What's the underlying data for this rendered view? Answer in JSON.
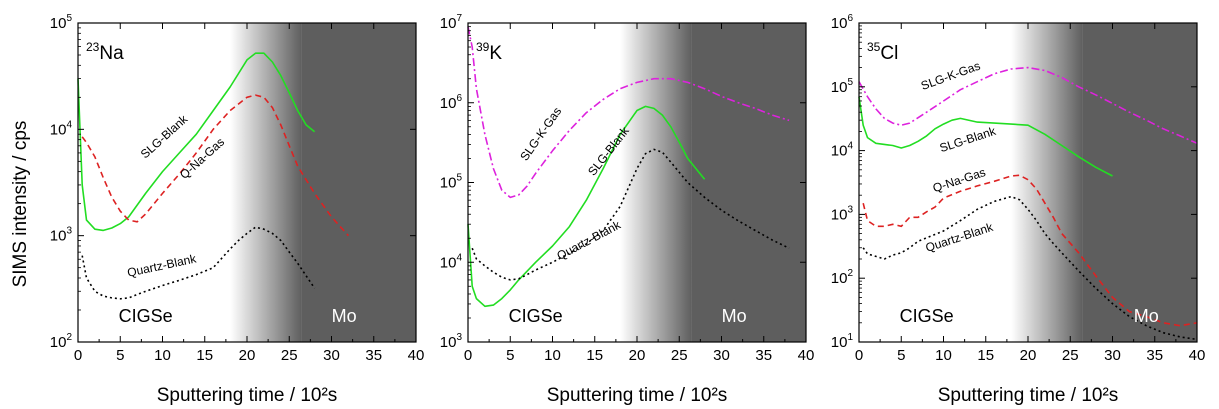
{
  "y_axis_label": "SIMS intensity / cps",
  "chart_data": [
    {
      "type": "line",
      "element": {
        "mass": "23",
        "symbol": "Na"
      },
      "xlabel": "Sputtering time / 10²s",
      "xlim": [
        0,
        40
      ],
      "x_ticks": [
        "0",
        "5",
        "10",
        "15",
        "20",
        "25",
        "30",
        "35",
        "40"
      ],
      "y_scale": "log",
      "ylim": [
        100,
        100000
      ],
      "y_ticks": [
        {
          "base": "10",
          "exp": "2"
        },
        {
          "base": "10",
          "exp": "3"
        },
        {
          "base": "10",
          "exp": "4"
        },
        {
          "base": "10",
          "exp": "5"
        }
      ],
      "regions": [
        {
          "label": "CIGSe",
          "x": 8,
          "color": "#000000"
        },
        {
          "label": "Mo",
          "x": 31.5,
          "color": "#ffffff"
        }
      ],
      "shade": {
        "gradient_start": 18,
        "gradient_end": 26.5,
        "dark_color": "#5e5e5e"
      },
      "series": [
        {
          "name": "SLG-Blank",
          "color": "#22dd22",
          "dash": "solid",
          "x": [
            0,
            0.5,
            1,
            2,
            3,
            4,
            5,
            6,
            8,
            10,
            12,
            14,
            16,
            18,
            20,
            21,
            22,
            23,
            24,
            25,
            26,
            27,
            28
          ],
          "y": [
            30000,
            3000,
            1400,
            1150,
            1120,
            1180,
            1300,
            1500,
            2500,
            4000,
            6000,
            9000,
            15000,
            25000,
            45000,
            52000,
            52000,
            43000,
            32000,
            22000,
            15000,
            11000,
            9500
          ],
          "label": {
            "text": "SLG-Blank",
            "x": 10.5,
            "y": 8000,
            "angle": -42
          }
        },
        {
          "name": "Q-Na-Gas",
          "color": "#dd2222",
          "dash": "6,4",
          "x": [
            0.5,
            1,
            2,
            3,
            4,
            5,
            6,
            7,
            8,
            10,
            12,
            14,
            16,
            18,
            20,
            21,
            22,
            23,
            24,
            25,
            26,
            28,
            30,
            32
          ],
          "y": [
            8500,
            7500,
            5500,
            3500,
            2300,
            1700,
            1400,
            1350,
            1600,
            2500,
            3800,
            6000,
            10000,
            15000,
            20000,
            21000,
            20000,
            16000,
            11000,
            7000,
            4500,
            2500,
            1500,
            1000
          ],
          "label": {
            "text": "Q-Na-Gas",
            "x": 15,
            "y": 5000,
            "angle": -42
          }
        },
        {
          "name": "Quartz-Blank",
          "color": "#000000",
          "dash": "2,3",
          "x": [
            0.5,
            1,
            2,
            3,
            4,
            5,
            6,
            7,
            8,
            10,
            12,
            14,
            16,
            18,
            19,
            20,
            21,
            22,
            23,
            24,
            25,
            26,
            27,
            28
          ],
          "y": [
            650,
            400,
            300,
            270,
            260,
            255,
            260,
            280,
            300,
            340,
            380,
            430,
            500,
            750,
            900,
            1050,
            1200,
            1150,
            1050,
            900,
            700,
            550,
            420,
            320
          ],
          "label": {
            "text": "Quartz-Blank",
            "x": 10,
            "y": 480,
            "angle": -12
          }
        }
      ]
    },
    {
      "type": "line",
      "element": {
        "mass": "39",
        "symbol": "K"
      },
      "xlabel": "Sputtering time / 10²s",
      "xlim": [
        0,
        40
      ],
      "x_ticks": [
        "0",
        "5",
        "10",
        "15",
        "20",
        "25",
        "30",
        "35",
        "40"
      ],
      "y_scale": "log",
      "ylim": [
        1000,
        10000000
      ],
      "y_ticks": [
        {
          "base": "10",
          "exp": "3"
        },
        {
          "base": "10",
          "exp": "4"
        },
        {
          "base": "10",
          "exp": "5"
        },
        {
          "base": "10",
          "exp": "6"
        },
        {
          "base": "10",
          "exp": "7"
        }
      ],
      "regions": [
        {
          "label": "CIGSe",
          "x": 8,
          "color": "#000000"
        },
        {
          "label": "Mo",
          "x": 31.5,
          "color": "#ffffff"
        }
      ],
      "shade": {
        "gradient_start": 18,
        "gradient_end": 26.5,
        "dark_color": "#5e5e5e"
      },
      "series": [
        {
          "name": "SLG-K-Gas",
          "color": "#dd22dd",
          "dash": "8,3,2,3",
          "x": [
            0,
            0.5,
            1,
            2,
            3,
            4,
            5,
            6,
            7,
            8,
            10,
            12,
            14,
            16,
            18,
            20,
            22,
            24,
            26,
            28,
            30,
            32,
            34,
            36,
            38
          ],
          "y": [
            9000000,
            5000000,
            1500000,
            400000,
            150000,
            80000,
            65000,
            70000,
            90000,
            130000,
            250000,
            450000,
            750000,
            1100000,
            1500000,
            1800000,
            2000000,
            2000000,
            1800000,
            1500000,
            1200000,
            1000000,
            850000,
            700000,
            600000
          ],
          "label": {
            "text": "SLG-K-Gas",
            "x": 9,
            "y": 380000,
            "angle": -55
          }
        },
        {
          "name": "SLG-Blank",
          "color": "#22dd22",
          "dash": "solid",
          "x": [
            0,
            0.5,
            1,
            2,
            3,
            4,
            5,
            6,
            8,
            10,
            12,
            14,
            16,
            18,
            20,
            21,
            22,
            23,
            24,
            25,
            26,
            28
          ],
          "y": [
            30000,
            5000,
            3500,
            2800,
            2900,
            3500,
            4500,
            6000,
            10000,
            16000,
            28000,
            60000,
            150000,
            400000,
            800000,
            900000,
            850000,
            700000,
            500000,
            320000,
            200000,
            110000
          ],
          "label": {
            "text": "SLG-Blank",
            "x": 17,
            "y": 230000,
            "angle": -52
          }
        },
        {
          "name": "Quartz-Blank",
          "color": "#000000",
          "dash": "2,3",
          "x": [
            0.5,
            1,
            2,
            3,
            4,
            5,
            6,
            7,
            8,
            10,
            12,
            14,
            16,
            18,
            20,
            21,
            22,
            23,
            24,
            26,
            28,
            30,
            32,
            34,
            36,
            38
          ],
          "y": [
            15000,
            11000,
            9000,
            7500,
            6500,
            6000,
            6200,
            7000,
            8000,
            10000,
            13000,
            17000,
            25000,
            50000,
            150000,
            230000,
            260000,
            240000,
            180000,
            100000,
            65000,
            45000,
            33000,
            25000,
            19000,
            15000
          ],
          "label": {
            "text": "Quartz-Blank",
            "x": 14.5,
            "y": 17000,
            "angle": -28
          }
        }
      ]
    },
    {
      "type": "line",
      "element": {
        "mass": "35",
        "symbol": "Cl"
      },
      "xlabel": "Sputtering time / 10²s",
      "xlim": [
        0,
        40
      ],
      "x_ticks": [
        "0",
        "5",
        "10",
        "15",
        "20",
        "25",
        "30",
        "35",
        "40"
      ],
      "y_scale": "log",
      "ylim": [
        10,
        1000000
      ],
      "y_ticks": [
        {
          "base": "10",
          "exp": "1"
        },
        {
          "base": "10",
          "exp": "2"
        },
        {
          "base": "10",
          "exp": "3"
        },
        {
          "base": "10",
          "exp": "4"
        },
        {
          "base": "10",
          "exp": "5"
        },
        {
          "base": "10",
          "exp": "6"
        }
      ],
      "regions": [
        {
          "label": "CIGSe",
          "x": 8,
          "color": "#000000"
        },
        {
          "label": "Mo",
          "x": 34,
          "color": "#ffffff"
        }
      ],
      "shade": {
        "gradient_start": 18,
        "gradient_end": 26.5,
        "dark_color": "#5e5e5e"
      },
      "series": [
        {
          "name": "SLG-K-Gas",
          "color": "#dd22dd",
          "dash": "8,3,2,3",
          "x": [
            0,
            1,
            2,
            3,
            4,
            5,
            6,
            8,
            10,
            12,
            14,
            16,
            18,
            20,
            22,
            24,
            26,
            28,
            30,
            32,
            34,
            36,
            38,
            40
          ],
          "y": [
            120000,
            70000,
            45000,
            32000,
            27000,
            25000,
            27000,
            40000,
            60000,
            90000,
            120000,
            160000,
            190000,
            200000,
            180000,
            140000,
            100000,
            75000,
            55000,
            40000,
            30000,
            22000,
            17000,
            13000
          ],
          "label": {
            "text": "SLG-K-Gas",
            "x": 11,
            "y": 130000,
            "angle": -20
          }
        },
        {
          "name": "SLG-Blank",
          "color": "#22dd22",
          "dash": "solid",
          "x": [
            0,
            0.5,
            1,
            2,
            3,
            4,
            5,
            6,
            7,
            8,
            9,
            10,
            11,
            12,
            14,
            16,
            18,
            20,
            22,
            24,
            26,
            28,
            30
          ],
          "y": [
            70000,
            25000,
            16000,
            13000,
            12500,
            12000,
            11000,
            12000,
            14000,
            17000,
            22000,
            26000,
            30000,
            32000,
            28000,
            27000,
            26000,
            25000,
            18000,
            12000,
            8000,
            5500,
            4000
          ],
          "label": {
            "text": "SLG-Blank",
            "x": 13,
            "y": 13000,
            "angle": -18
          }
        },
        {
          "name": "Q-Na-Gas",
          "color": "#dd2222",
          "dash": "6,4",
          "x": [
            0.5,
            1,
            2,
            3,
            4,
            5,
            6,
            7,
            8,
            9,
            10,
            12,
            14,
            16,
            18,
            19,
            20,
            21,
            22,
            23,
            24,
            26,
            28,
            30,
            32,
            34,
            36,
            38,
            40
          ],
          "y": [
            1500,
            800,
            650,
            650,
            700,
            650,
            900,
            900,
            1100,
            1300,
            1800,
            2300,
            2800,
            3300,
            4000,
            4100,
            3500,
            2500,
            1500,
            900,
            500,
            250,
            110,
            50,
            30,
            25,
            20,
            18,
            20
          ],
          "label": {
            "text": "Q-Na-Gas",
            "x": 12,
            "y": 3000,
            "angle": -18
          }
        },
        {
          "name": "Quartz-Blank",
          "color": "#000000",
          "dash": "2,3",
          "x": [
            0.5,
            1,
            2,
            3,
            4,
            5,
            6,
            7,
            8,
            10,
            12,
            14,
            16,
            18,
            19,
            20,
            21,
            22,
            23,
            24,
            26,
            28,
            30,
            32,
            34,
            36,
            38,
            40
          ],
          "y": [
            300,
            240,
            220,
            200,
            230,
            250,
            300,
            380,
            430,
            550,
            800,
            1200,
            1600,
            1900,
            1700,
            1200,
            800,
            500,
            350,
            250,
            130,
            70,
            40,
            25,
            18,
            14,
            12,
            11
          ],
          "label": {
            "text": "Quartz-Blank",
            "x": 12,
            "y": 380,
            "angle": -18
          }
        }
      ]
    }
  ]
}
